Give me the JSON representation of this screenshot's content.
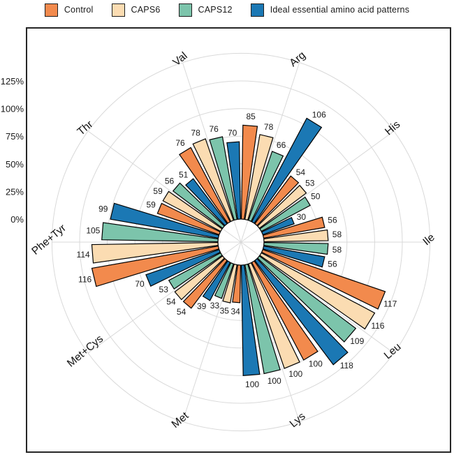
{
  "legend": {
    "items": [
      {
        "label": "Control",
        "color": "#F28A4D"
      },
      {
        "label": "CAPS6",
        "color": "#FBDCB2"
      },
      {
        "label": "CAPS12",
        "color": "#7CC4AB"
      },
      {
        "label": "Ideal essential amino acid patterns",
        "color": "#1B78B4"
      }
    ]
  },
  "chart_data": {
    "type": "polar_bar",
    "title": "",
    "unit": "%",
    "legend_position": "top",
    "categories": [
      "Val",
      "Arg",
      "His",
      "Ile",
      "Leu",
      "Lys",
      "Met",
      "Met+Cys",
      "Phe+Tyr",
      "Thr"
    ],
    "category_angles_deg": [
      108,
      72,
      36,
      0,
      -36,
      -72,
      -108,
      -144,
      180,
      144
    ],
    "series": [
      {
        "name": "Control",
        "color": "#F28A4D",
        "values": [
          76,
          85,
          54,
          56,
          117,
          100,
          34,
          54,
          116,
          59
        ]
      },
      {
        "name": "CAPS6",
        "color": "#FBDCB2",
        "values": [
          78,
          78,
          53,
          58,
          116,
          100,
          35,
          54,
          114,
          59
        ]
      },
      {
        "name": "CAPS12",
        "color": "#7CC4AB",
        "values": [
          76,
          66,
          50,
          58,
          109,
          100,
          33,
          53,
          105,
          56
        ]
      },
      {
        "name": "Ideal essential amino acid patterns",
        "color": "#1B78B4",
        "values": [
          70,
          106,
          30,
          56,
          118,
          100,
          39,
          70,
          99,
          51
        ]
      }
    ],
    "radial_axis": {
      "tick_labels": [
        "125%",
        "100%",
        "75%",
        "50%",
        "25%",
        "0%"
      ],
      "tick_levels": [
        125,
        100,
        75,
        50,
        25,
        0
      ],
      "min": 0,
      "max": 150,
      "grid_step_pct": 25,
      "grid": true,
      "grid_color": "#D9D9D9"
    },
    "bar_outline_color": "#000000",
    "value_label_color": "#1a1a1a",
    "frame_color": "#262626"
  }
}
